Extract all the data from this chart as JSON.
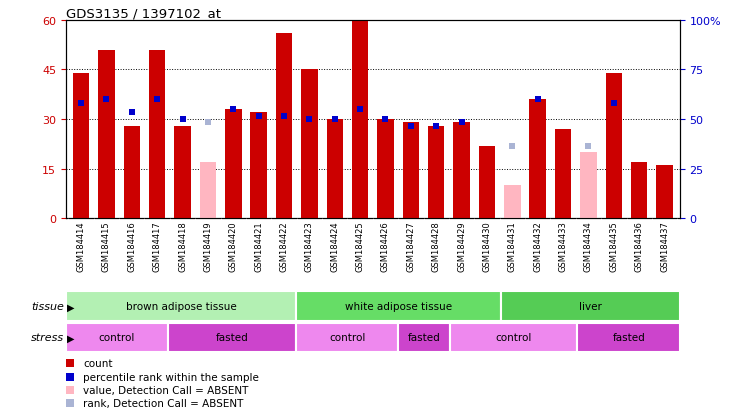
{
  "title": "GDS3135 / 1397102_at",
  "samples": [
    "GSM184414",
    "GSM184415",
    "GSM184416",
    "GSM184417",
    "GSM184418",
    "GSM184419",
    "GSM184420",
    "GSM184421",
    "GSM184422",
    "GSM184423",
    "GSM184424",
    "GSM184425",
    "GSM184426",
    "GSM184427",
    "GSM184428",
    "GSM184429",
    "GSM184430",
    "GSM184431",
    "GSM184432",
    "GSM184433",
    "GSM184434",
    "GSM184435",
    "GSM184436",
    "GSM184437"
  ],
  "count_values": [
    44,
    51,
    28,
    51,
    28,
    null,
    33,
    32,
    56,
    45,
    30,
    60,
    30,
    29,
    28,
    29,
    22,
    null,
    36,
    27,
    null,
    44,
    17,
    16
  ],
  "rank_values": [
    35,
    36,
    32,
    36,
    30,
    null,
    33,
    31,
    31,
    30,
    30,
    33,
    30,
    28,
    28,
    29,
    null,
    null,
    36,
    null,
    null,
    35,
    null,
    null
  ],
  "absent_count": [
    null,
    null,
    null,
    null,
    null,
    17,
    null,
    null,
    null,
    null,
    null,
    null,
    null,
    null,
    null,
    null,
    null,
    10,
    null,
    null,
    20,
    null,
    null,
    null
  ],
  "absent_rank": [
    null,
    null,
    null,
    null,
    null,
    29,
    null,
    null,
    null,
    null,
    null,
    null,
    null,
    null,
    null,
    null,
    null,
    22,
    null,
    null,
    22,
    null,
    null,
    null
  ],
  "count_color": "#cc0000",
  "rank_color": "#0000cc",
  "absent_count_color": "#ffb6c1",
  "absent_rank_color": "#aab4d4",
  "ylim_left": [
    0,
    60
  ],
  "ylim_right": [
    0,
    100
  ],
  "yticks_left": [
    0,
    15,
    30,
    45,
    60
  ],
  "yticks_right": [
    0,
    25,
    50,
    75,
    100
  ],
  "tissue_defs": [
    [
      0,
      9,
      "brown adipose tissue",
      "#b3f0b3"
    ],
    [
      9,
      17,
      "white adipose tissue",
      "#66dd66"
    ],
    [
      17,
      24,
      "liver",
      "#55cc55"
    ]
  ],
  "stress_defs": [
    [
      0,
      4,
      "control",
      "#ee88ee"
    ],
    [
      4,
      9,
      "fasted",
      "#cc44cc"
    ],
    [
      9,
      13,
      "control",
      "#ee88ee"
    ],
    [
      13,
      15,
      "fasted",
      "#cc44cc"
    ],
    [
      15,
      20,
      "control",
      "#ee88ee"
    ],
    [
      20,
      24,
      "fasted",
      "#cc44cc"
    ]
  ],
  "legend_items": [
    [
      "#cc0000",
      "count"
    ],
    [
      "#0000cc",
      "percentile rank within the sample"
    ],
    [
      "#ffb6c1",
      "value, Detection Call = ABSENT"
    ],
    [
      "#aab4d4",
      "rank, Detection Call = ABSENT"
    ]
  ]
}
